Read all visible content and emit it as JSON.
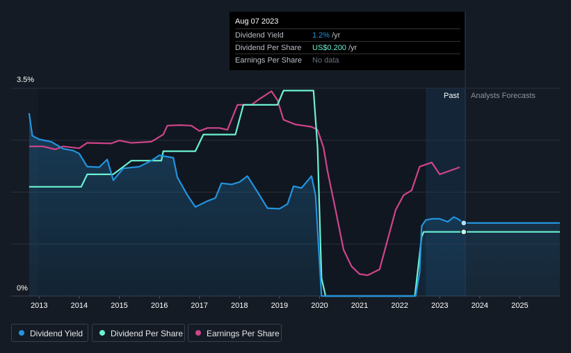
{
  "tooltip": {
    "date": "Aug 07 2023",
    "rows": [
      {
        "label": "Dividend Yield",
        "value": "1.2%",
        "unit": "/yr",
        "color": "#2394df"
      },
      {
        "label": "Dividend Per Share",
        "value": "US$0.200",
        "unit": "/yr",
        "color": "#6cf2d2"
      },
      {
        "label": "Earnings Per Share",
        "value": "No data",
        "unit": "",
        "color": "#6b7280"
      }
    ]
  },
  "regions": {
    "past": "Past",
    "forecast": "Analysts Forecasts"
  },
  "legend": [
    {
      "label": "Dividend Yield",
      "color": "#2394df"
    },
    {
      "label": "Dividend Per Share",
      "color": "#6cf2d2"
    },
    {
      "label": "Earnings Per Share",
      "color": "#d0448b"
    }
  ],
  "chart_data": {
    "type": "line",
    "xlabel": "",
    "ylabel": "",
    "xlim": [
      2012.3,
      2026.0
    ],
    "ylim": [
      0,
      3.5
    ],
    "y_tick_labels": [
      {
        "value": 3.5,
        "label": "3.5%"
      },
      {
        "value": 0,
        "label": "0%"
      }
    ],
    "x_ticks": [
      2013,
      2014,
      2015,
      2016,
      2017,
      2018,
      2019,
      2020,
      2021,
      2022,
      2023,
      2024,
      2025
    ],
    "x_tick_labels": [
      "2013",
      "2014",
      "2015",
      "2016",
      "2017",
      "2018",
      "2019",
      "2020",
      "2021",
      "2022",
      "2023",
      "2024",
      "2025"
    ],
    "past_start": 2022.6,
    "forecast_start": 2023.6,
    "series": [
      {
        "name": "Dividend Yield",
        "color": "#2394df",
        "unit": "%",
        "points": [
          [
            2012.75,
            3.08
          ],
          [
            2012.83,
            2.7
          ],
          [
            2013.0,
            2.64
          ],
          [
            2013.3,
            2.6
          ],
          [
            2013.6,
            2.48
          ],
          [
            2013.85,
            2.45
          ],
          [
            2014.0,
            2.4
          ],
          [
            2014.2,
            2.18
          ],
          [
            2014.5,
            2.17
          ],
          [
            2014.7,
            2.3
          ],
          [
            2014.85,
            1.95
          ],
          [
            2015.1,
            2.15
          ],
          [
            2015.5,
            2.18
          ],
          [
            2015.8,
            2.28
          ],
          [
            2016.0,
            2.37
          ],
          [
            2016.35,
            2.33
          ],
          [
            2016.45,
            2.0
          ],
          [
            2016.7,
            1.7
          ],
          [
            2016.9,
            1.5
          ],
          [
            2017.2,
            1.6
          ],
          [
            2017.4,
            1.65
          ],
          [
            2017.55,
            1.9
          ],
          [
            2017.8,
            1.88
          ],
          [
            2018.0,
            1.92
          ],
          [
            2018.2,
            2.02
          ],
          [
            2018.5,
            1.7
          ],
          [
            2018.7,
            1.48
          ],
          [
            2019.0,
            1.47
          ],
          [
            2019.2,
            1.55
          ],
          [
            2019.35,
            1.85
          ],
          [
            2019.55,
            1.82
          ],
          [
            2019.8,
            2.02
          ],
          [
            2019.9,
            1.7
          ],
          [
            2019.97,
            0.9
          ],
          [
            2020.05,
            0.0
          ],
          [
            2022.4,
            0.0
          ],
          [
            2022.5,
            0.4
          ],
          [
            2022.55,
            1.18
          ],
          [
            2022.65,
            1.28
          ],
          [
            2022.8,
            1.3
          ],
          [
            2023.0,
            1.3
          ],
          [
            2023.2,
            1.25
          ],
          [
            2023.35,
            1.33
          ],
          [
            2023.45,
            1.3
          ],
          [
            2023.6,
            1.23
          ],
          [
            2026.0,
            1.23
          ]
        ]
      },
      {
        "name": "Dividend Per Share",
        "color": "#6cf2d2",
        "unit": "US$",
        "points": [
          [
            2012.75,
            1.84
          ],
          [
            2014.05,
            1.84
          ],
          [
            2014.2,
            2.05
          ],
          [
            2014.85,
            2.05
          ],
          [
            2015.3,
            2.28
          ],
          [
            2016.05,
            2.28
          ],
          [
            2016.1,
            2.44
          ],
          [
            2016.9,
            2.44
          ],
          [
            2017.1,
            2.72
          ],
          [
            2017.9,
            2.72
          ],
          [
            2018.1,
            3.22
          ],
          [
            2018.95,
            3.22
          ],
          [
            2019.1,
            3.46
          ],
          [
            2019.85,
            3.46
          ],
          [
            2019.95,
            2.5
          ],
          [
            2020.05,
            0.3
          ],
          [
            2020.15,
            0.0
          ],
          [
            2022.38,
            0.0
          ],
          [
            2022.55,
            1.0
          ],
          [
            2022.6,
            1.08
          ],
          [
            2026.0,
            1.08
          ]
        ]
      },
      {
        "name": "Earnings Per Share",
        "color": "#d0448b",
        "unit": "US$",
        "points": [
          [
            2012.75,
            2.52
          ],
          [
            2013.1,
            2.52
          ],
          [
            2013.4,
            2.47
          ],
          [
            2013.6,
            2.52
          ],
          [
            2014.0,
            2.49
          ],
          [
            2014.2,
            2.58
          ],
          [
            2014.8,
            2.57
          ],
          [
            2015.0,
            2.62
          ],
          [
            2015.3,
            2.58
          ],
          [
            2015.8,
            2.6
          ],
          [
            2016.1,
            2.72
          ],
          [
            2016.2,
            2.87
          ],
          [
            2016.5,
            2.88
          ],
          [
            2016.8,
            2.87
          ],
          [
            2017.0,
            2.78
          ],
          [
            2017.2,
            2.83
          ],
          [
            2017.5,
            2.83
          ],
          [
            2017.7,
            2.8
          ],
          [
            2017.95,
            3.22
          ],
          [
            2018.3,
            3.22
          ],
          [
            2018.5,
            3.32
          ],
          [
            2018.8,
            3.45
          ],
          [
            2018.95,
            3.3
          ],
          [
            2019.1,
            2.97
          ],
          [
            2019.4,
            2.89
          ],
          [
            2019.6,
            2.87
          ],
          [
            2019.8,
            2.85
          ],
          [
            2019.95,
            2.8
          ],
          [
            2020.1,
            2.5
          ],
          [
            2020.2,
            2.1
          ],
          [
            2020.4,
            1.45
          ],
          [
            2020.6,
            0.78
          ],
          [
            2020.8,
            0.5
          ],
          [
            2021.0,
            0.37
          ],
          [
            2021.2,
            0.35
          ],
          [
            2021.5,
            0.45
          ],
          [
            2021.7,
            0.95
          ],
          [
            2021.9,
            1.45
          ],
          [
            2022.1,
            1.7
          ],
          [
            2022.3,
            1.78
          ],
          [
            2022.5,
            2.18
          ],
          [
            2022.8,
            2.25
          ],
          [
            2023.0,
            2.05
          ],
          [
            2023.5,
            2.17
          ]
        ]
      }
    ]
  }
}
